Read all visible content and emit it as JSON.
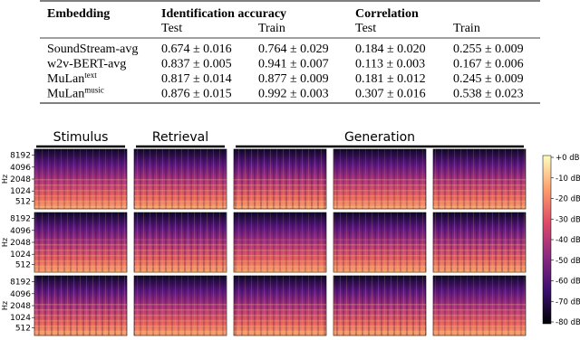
{
  "table": {
    "header": [
      "Embedding",
      "Identification accuracy",
      "Correlation"
    ],
    "subheader": [
      "Test",
      "Train",
      "Test",
      "Train"
    ],
    "rows": [
      {
        "name": "SoundStream-avg",
        "cells": [
          "0.674 ± 0.016",
          "0.764 ± 0.029",
          "0.184 ± 0.020",
          "0.255 ± 0.009"
        ]
      },
      {
        "name": "w2v-BERT-avg",
        "cells": [
          "0.837 ± 0.005",
          "0.941 ± 0.007",
          "0.113 ± 0.003",
          "0.167 ± 0.006"
        ]
      },
      {
        "name": "MuLan",
        "sup": "text",
        "cells": [
          "0.817 ± 0.014",
          "0.877 ± 0.009",
          "0.181 ± 0.012",
          "0.245 ± 0.009"
        ]
      },
      {
        "name": "MuLan",
        "sup": "music",
        "cells": [
          "0.876 ± 0.015",
          "0.992 ± 0.003",
          "0.307 ± 0.016",
          "0.538 ± 0.023"
        ]
      }
    ]
  },
  "figure": {
    "column_labels": [
      "Stimulus",
      "Retrieval",
      "Generation"
    ],
    "y_axis_label": "Hz",
    "y_ticks": [
      "8192",
      "4096",
      "2048",
      "1024",
      "512"
    ],
    "colorbar_ticks": [
      "+0 dB",
      "-10 dB",
      "-20 dB",
      "-30 dB",
      "-40 dB",
      "-50 dB",
      "-60 dB",
      "-70 dB",
      "-80 dB"
    ]
  }
}
